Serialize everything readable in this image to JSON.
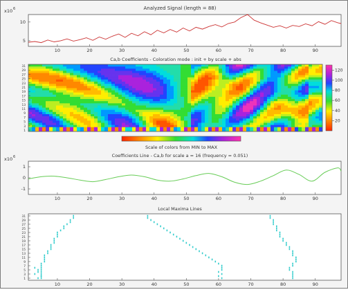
{
  "panels": {
    "signal": {
      "title": "Analyzed Signal (length = 88)",
      "exponent": "x10",
      "exponent_power": "6",
      "ytick_labels": [
        "5",
        "10"
      ],
      "ytick_values": [
        5,
        10
      ]
    },
    "coefs": {
      "title": "Ca,b Coefficients - Coloration mode : init + by scale + abs",
      "ytick_labels": [
        "1",
        "3",
        "5",
        "7",
        "9",
        "11",
        "13",
        "15",
        "17",
        "19",
        "21",
        "23",
        "25",
        "27",
        "29",
        "31"
      ],
      "colorbar_ticks": [
        "20",
        "40",
        "60",
        "80",
        "100",
        "120"
      ],
      "colorbar_tick_values": [
        20,
        40,
        60,
        80,
        100,
        120
      ]
    },
    "color_scale": {
      "caption": "Scale of colors from MIN to MAX"
    },
    "line": {
      "title": "Coefficients Line - Ca,b for scale a = 16  (frequency =  0.051)",
      "exponent": "x10",
      "exponent_power": "6",
      "ytick_labels": [
        "-1",
        "0",
        "1"
      ],
      "ytick_values": [
        -1,
        0,
        1
      ]
    },
    "maxima": {
      "title": "Local Maxima Lines",
      "ytick_labels": [
        "1",
        "3",
        "5",
        "7",
        "9",
        "11",
        "13",
        "15",
        "17",
        "19",
        "21",
        "23",
        "25",
        "27",
        "29",
        "31"
      ]
    }
  },
  "xtick_labels": [
    "10",
    "20",
    "30",
    "40",
    "50",
    "60",
    "70",
    "80",
    "90"
  ],
  "xtick_values": [
    10,
    20,
    30,
    40,
    50,
    60,
    70,
    80,
    90
  ],
  "colors": {
    "signal": "#cc3333",
    "coef_line": "#66cc55",
    "maxima": "#33cccc"
  },
  "chart_data": [
    {
      "type": "line",
      "title": "Analyzed Signal (length = 88)",
      "x_range": [
        1,
        98
      ],
      "ylim": [
        3.5,
        12
      ],
      "y_scale_label": "x10^6",
      "x": [
        1,
        3,
        5,
        7,
        9,
        11,
        13,
        15,
        17,
        19,
        21,
        23,
        25,
        27,
        29,
        31,
        33,
        35,
        37,
        39,
        41,
        43,
        45,
        47,
        49,
        51,
        53,
        55,
        57,
        59,
        61,
        63,
        65,
        67,
        69,
        71,
        73,
        75,
        77,
        79,
        81,
        83,
        85,
        87,
        89,
        91,
        93,
        95,
        97,
        98
      ],
      "values": [
        4.6,
        4.8,
        4.5,
        5.2,
        4.7,
        5.0,
        5.5,
        4.9,
        5.3,
        5.8,
        5.1,
        6.0,
        5.4,
        6.2,
        6.8,
        5.9,
        7.0,
        6.3,
        7.4,
        6.6,
        7.8,
        7.1,
        8.0,
        7.3,
        8.4,
        7.6,
        8.6,
        8.1,
        8.8,
        9.3,
        8.7,
        9.6,
        10.0,
        11.2,
        12.0,
        10.5,
        9.8,
        9.2,
        8.6,
        9.0,
        8.4,
        9.1,
        8.8,
        9.5,
        9.0,
        10.1,
        9.4,
        10.4,
        9.8,
        9.6
      ]
    },
    {
      "type": "heatmap",
      "title": "Ca,b Coefficients - Coloration mode : init + by scale + abs",
      "x_range": [
        1,
        98
      ],
      "y_range": [
        1,
        31
      ],
      "colorbar_range": [
        0,
        130
      ]
    },
    {
      "type": "line",
      "title": "Coefficients Line - Ca,b for scale a = 16  (frequency =  0.051)",
      "x_range": [
        1,
        98
      ],
      "ylim": [
        -1.5,
        1.5
      ],
      "y_scale_label": "x10^6",
      "x": [
        1,
        5,
        9,
        13,
        17,
        21,
        25,
        29,
        33,
        37,
        41,
        45,
        49,
        53,
        57,
        61,
        65,
        69,
        73,
        77,
        81,
        85,
        89,
        93,
        97,
        98
      ],
      "values": [
        -0.1,
        0.1,
        0.15,
        0.0,
        -0.2,
        -0.35,
        -0.15,
        0.1,
        0.25,
        0.1,
        -0.2,
        -0.3,
        -0.1,
        0.2,
        0.4,
        0.1,
        -0.4,
        -0.6,
        -0.3,
        0.2,
        0.7,
        0.3,
        -0.3,
        0.5,
        0.9,
        0.6
      ]
    },
    {
      "type": "scatter",
      "title": "Local Maxima Lines",
      "x_range": [
        1,
        98
      ],
      "y_range": [
        1,
        31
      ],
      "series": [
        {
          "x": [
            15,
            15,
            14,
            14,
            13,
            12,
            12,
            11,
            10,
            10,
            10,
            9,
            9,
            9,
            8,
            8,
            8,
            7,
            7,
            6
          ],
          "y": [
            31,
            30,
            29,
            28,
            27,
            26,
            25,
            24,
            23,
            22,
            21,
            20,
            19,
            18,
            17,
            16,
            15,
            14,
            13,
            12
          ]
        },
        {
          "x": [
            6,
            6,
            6,
            5,
            5,
            5,
            5,
            5,
            5,
            5,
            5
          ],
          "y": [
            11,
            10,
            9,
            8,
            7,
            6,
            5,
            4,
            3,
            2,
            1
          ]
        },
        {
          "x": [
            38,
            38,
            39,
            40,
            41,
            42,
            43,
            44,
            45,
            46,
            47,
            48,
            49,
            50,
            51,
            52,
            53,
            54,
            55,
            56,
            57,
            58,
            59,
            60,
            61,
            61,
            61,
            60,
            61,
            60,
            61
          ],
          "y": [
            31,
            30,
            29,
            28,
            27,
            26,
            25,
            24,
            23,
            22,
            21,
            20,
            19,
            18,
            17,
            16,
            15,
            14,
            13,
            12,
            11,
            10,
            9,
            8,
            7,
            6,
            5,
            4,
            3,
            2,
            1
          ]
        },
        {
          "x": [
            76,
            76,
            77,
            77,
            77,
            78,
            78,
            78,
            79,
            79,
            79,
            80,
            80,
            81,
            81,
            82,
            82,
            83,
            83,
            83,
            84,
            84,
            84,
            83,
            83,
            82,
            82,
            83,
            83,
            83,
            83
          ],
          "y": [
            31,
            30,
            29,
            28,
            27,
            26,
            25,
            24,
            23,
            22,
            21,
            20,
            19,
            18,
            17,
            16,
            15,
            14,
            13,
            12,
            11,
            10,
            9,
            8,
            7,
            6,
            5,
            4,
            3,
            2,
            1
          ]
        },
        {
          "x": [
            3,
            4,
            4,
            3,
            5,
            4
          ],
          "y": [
            6,
            5,
            4,
            3,
            2,
            1
          ]
        }
      ]
    }
  ]
}
